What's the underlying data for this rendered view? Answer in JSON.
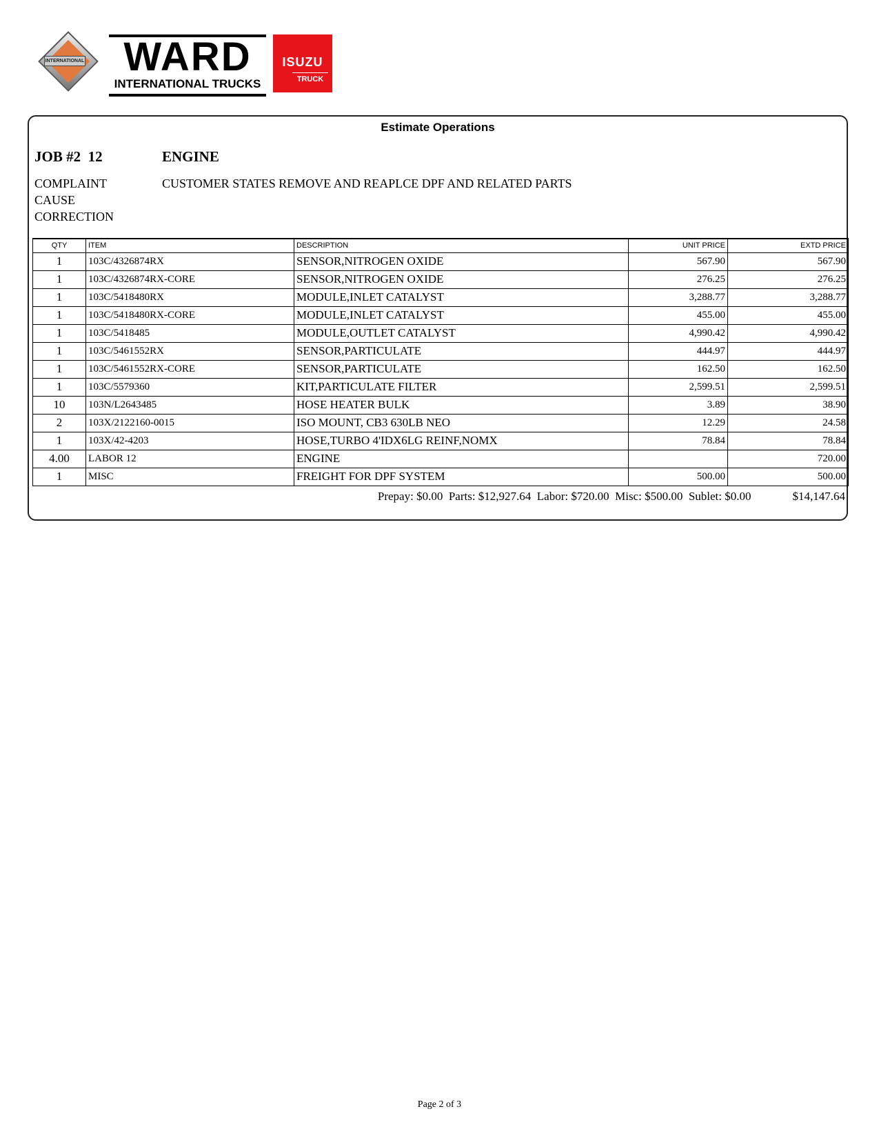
{
  "logo": {
    "brand": "WARD",
    "subtitle": "INTERNATIONAL TRUCKS",
    "intl": "INTERNATIONAL",
    "isuzu": "ISUZU",
    "isuzu_sub": "TRUCK",
    "accent": "#e8141b"
  },
  "title": "Estimate Operations",
  "job": {
    "number": "JOB #2  12",
    "name": "ENGINE"
  },
  "labels": {
    "complaint": "COMPLAINT",
    "cause": "CAUSE",
    "correction": "CORRECTION"
  },
  "complaint_text": "CUSTOMER STATES REMOVE AND REAPLCE DPF AND RELATED PARTS",
  "columns": {
    "qty": "QTY",
    "item": "ITEM",
    "description": "DESCRIPTION",
    "unit_price": "UNIT PRICE",
    "extd_price": "EXTD PRICE"
  },
  "rows": [
    {
      "qty": "1",
      "item": "103C/4326874RX",
      "desc": "SENSOR,NITROGEN OXIDE",
      "unit": "567.90",
      "extd": "567.90"
    },
    {
      "qty": "1",
      "item": "103C/4326874RX-CORE",
      "desc": "SENSOR,NITROGEN OXIDE",
      "unit": "276.25",
      "extd": "276.25"
    },
    {
      "qty": "1",
      "item": "103C/5418480RX",
      "desc": "MODULE,INLET CATALYST",
      "unit": "3,288.77",
      "extd": "3,288.77"
    },
    {
      "qty": "1",
      "item": "103C/5418480RX-CORE",
      "desc": "MODULE,INLET CATALYST",
      "unit": "455.00",
      "extd": "455.00"
    },
    {
      "qty": "1",
      "item": "103C/5418485",
      "desc": "MODULE,OUTLET CATALYST",
      "unit": "4,990.42",
      "extd": "4,990.42"
    },
    {
      "qty": "1",
      "item": "103C/5461552RX",
      "desc": "SENSOR,PARTICULATE",
      "unit": "444.97",
      "extd": "444.97"
    },
    {
      "qty": "1",
      "item": "103C/5461552RX-CORE",
      "desc": "SENSOR,PARTICULATE",
      "unit": "162.50",
      "extd": "162.50"
    },
    {
      "qty": "1",
      "item": "103C/5579360",
      "desc": "KIT,PARTICULATE FILTER",
      "unit": "2,599.51",
      "extd": "2,599.51"
    },
    {
      "qty": "10",
      "item": "103N/L2643485",
      "desc": "HOSE HEATER BULK",
      "unit": "3.89",
      "extd": "38.90"
    },
    {
      "qty": "2",
      "item": "103X/2122160-0015",
      "desc": "ISO MOUNT, CB3 630LB NEO",
      "unit": "12.29",
      "extd": "24.58"
    },
    {
      "qty": "1",
      "item": "103X/42-4203",
      "desc": "HOSE,TURBO 4'IDX6LG REINF,NOMX",
      "unit": "78.84",
      "extd": "78.84"
    },
    {
      "qty": "4.00",
      "item": "LABOR 12",
      "desc": "ENGINE",
      "unit": "",
      "extd": "720.00"
    },
    {
      "qty": "1",
      "item": "MISC",
      "desc": "FREIGHT FOR DPF SYSTEM",
      "unit": "500.00",
      "extd": "500.00"
    }
  ],
  "totals": {
    "summary": "Prepay: $0.00  Parts: $12,927.64  Labor: $720.00  Misc: $500.00  Sublet: $0.00",
    "grand_total": "$14,147.64"
  },
  "footer": "Page 2 of 3"
}
